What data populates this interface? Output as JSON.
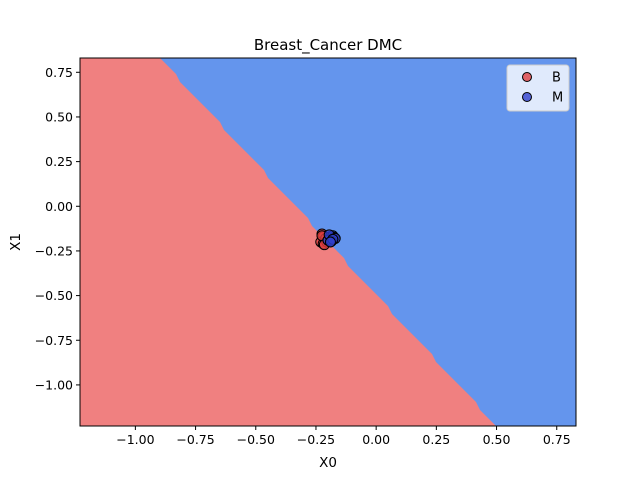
{
  "chart_data": {
    "type": "scatter",
    "title": "Breast_Cancer DMC",
    "xlabel": "X0",
    "ylabel": "X1",
    "xlim": [
      -1.23,
      0.83
    ],
    "ylim": [
      -1.23,
      0.83
    ],
    "x_ticks": [
      -1.0,
      -0.75,
      -0.5,
      -0.25,
      0.0,
      0.25,
      0.5,
      0.75
    ],
    "x_tick_labels": [
      "−1.00",
      "−0.75",
      "−0.50",
      "−0.25",
      "0.00",
      "0.25",
      "0.50",
      "0.75"
    ],
    "y_ticks": [
      0.75,
      0.5,
      0.25,
      0.0,
      -0.25,
      -0.5,
      -0.75,
      -1.0
    ],
    "y_tick_labels": [
      "0.75",
      "0.50",
      "0.25",
      "0.00",
      "−0.25",
      "−0.50",
      "−0.75",
      "−1.00"
    ],
    "grid": false,
    "legend_position": "top-right",
    "decision_regions": [
      {
        "class": "B",
        "color": "#f08080"
      },
      {
        "class": "M",
        "color": "#6495ed"
      }
    ],
    "decision_boundary": {
      "x": [
        -0.9,
        0.5
      ],
      "y": [
        0.83,
        -1.23
      ]
    },
    "series": [
      {
        "name": "B",
        "color": "#e04040",
        "x": [
          -0.225,
          -0.22,
          -0.215,
          -0.23,
          -0.21,
          -0.22,
          -0.205,
          -0.225,
          -0.215,
          -0.2
        ],
        "y": [
          -0.155,
          -0.17,
          -0.19,
          -0.2,
          -0.18,
          -0.21,
          -0.2,
          -0.165,
          -0.215,
          -0.19
        ]
      },
      {
        "name": "M",
        "color": "#3040cc",
        "x": [
          -0.19,
          -0.185,
          -0.18,
          -0.175,
          -0.2,
          -0.195,
          -0.17,
          -0.185,
          -0.18,
          -0.19
        ],
        "y": [
          -0.17,
          -0.18,
          -0.165,
          -0.175,
          -0.19,
          -0.16,
          -0.18,
          -0.195,
          -0.185,
          -0.2
        ]
      }
    ]
  }
}
